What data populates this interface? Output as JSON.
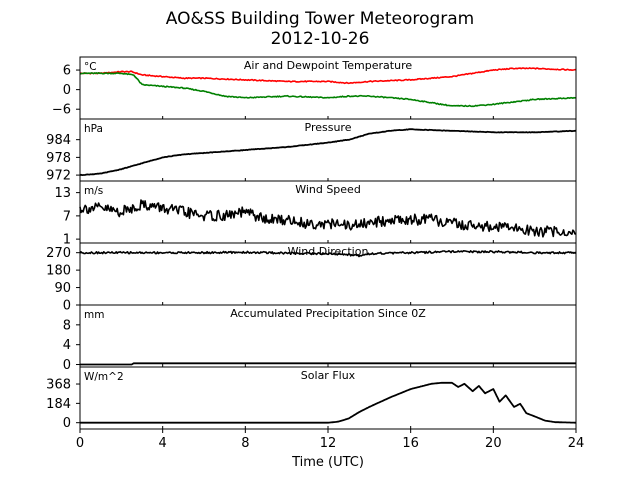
{
  "title": "AO&SS Building Tower Meteorogram",
  "subtitle": "2012-10-26",
  "chart_data": {
    "type": "line",
    "title": "AO&SS Building Tower Meteorogram",
    "subtitle": "2012-10-26",
    "xlabel": "Time (UTC)",
    "xlim": [
      0,
      24
    ],
    "xticks": [
      0,
      4,
      8,
      12,
      16,
      20,
      24
    ],
    "xtick_labels": [
      "0",
      "4",
      "8",
      "12",
      "16",
      "20",
      "24"
    ],
    "grid": false,
    "panels": [
      {
        "id": "temperature",
        "title": "Air and Dewpoint Temperature",
        "unit": "°C",
        "ylim": [
          -9,
          10
        ],
        "yticks": [
          6,
          0,
          -6
        ],
        "ytick_labels": [
          "6",
          "0",
          "−6"
        ],
        "series": [
          {
            "color": "#ff0000",
            "x": [
              0,
              1,
              2,
              2.5,
              3,
              4,
              5,
              6,
              8,
              10,
              12,
              13,
              14,
              16,
              18,
              20,
              21,
              22,
              24
            ],
            "values": [
              5,
              5,
              5.5,
              5.5,
              4.5,
              4,
              3.5,
              3.5,
              3,
              2.5,
              2.5,
              2,
              2.5,
              3,
              4,
              6,
              6.5,
              6.5,
              6
            ]
          },
          {
            "color": "#008000",
            "x": [
              0,
              1,
              2,
              2.6,
              3,
              4,
              5,
              6,
              7,
              8,
              10,
              12,
              13,
              14,
              16,
              18,
              19,
              20,
              22,
              24
            ],
            "values": [
              5,
              5,
              5,
              4.5,
              1.5,
              1,
              0.5,
              -0.5,
              -2,
              -2.5,
              -2,
              -2.5,
              -2,
              -2,
              -3,
              -5,
              -5,
              -4.5,
              -3,
              -2.5
            ]
          }
        ]
      },
      {
        "id": "pressure",
        "title": "Pressure",
        "unit": "hPa",
        "ylim": [
          970,
          991
        ],
        "yticks": [
          984,
          978,
          972
        ],
        "ytick_labels": [
          "984",
          "978",
          "972"
        ],
        "series": [
          {
            "color": "#000000",
            "x": [
              0,
              1,
              2,
              3,
              4,
              5,
              6,
              8,
              10,
              12,
              13,
              14,
              15,
              16,
              18,
              20,
              22,
              24
            ],
            "values": [
              972,
              972.5,
              974,
              976,
              978,
              979,
              979.5,
              980.5,
              981.5,
              983,
              984,
              986,
              987,
              987.5,
              987,
              986.5,
              986.5,
              987
            ]
          }
        ]
      },
      {
        "id": "wind_speed",
        "title": "Wind Speed",
        "unit": "m/s",
        "ylim": [
          0,
          16
        ],
        "yticks": [
          13,
          7,
          1
        ],
        "ytick_labels": [
          "13",
          "7",
          "1"
        ],
        "series": [
          {
            "color": "#000000",
            "x": [
              0,
              1,
              2,
              3,
              4,
              5,
              6,
              7,
              8,
              9,
              10,
              11,
              12,
              13,
              14,
              15,
              16,
              17,
              18,
              19,
              20,
              21,
              22,
              23,
              24
            ],
            "values": [
              9,
              9,
              8,
              10,
              9,
              8,
              7,
              7,
              8,
              6,
              6,
              5,
              5,
              4.5,
              5,
              6,
              6,
              6,
              5,
              4.5,
              4,
              4,
              3,
              3,
              2.5
            ]
          }
        ]
      },
      {
        "id": "wind_direction",
        "title": "Wind Direction",
        "unit": "",
        "ylim": [
          0,
          320
        ],
        "yticks": [
          270,
          180,
          90,
          0
        ],
        "ytick_labels": [
          "270",
          "180",
          "90",
          "0"
        ],
        "series": [
          {
            "color": "#000000",
            "x": [
              0,
              2,
              4,
              6,
              8,
              10,
              12,
              13,
              13.5,
              14,
              16,
              18,
              20,
              22,
              24
            ],
            "values": [
              270,
              270,
              270,
              270,
              272,
              268,
              265,
              260,
              255,
              265,
              270,
              275,
              275,
              270,
              270
            ]
          }
        ]
      },
      {
        "id": "precipitation",
        "title": "Accumulated Precipitation Since 0Z",
        "unit": "mm",
        "ylim": [
          -0.5,
          12
        ],
        "yticks": [
          8,
          4,
          0
        ],
        "ytick_labels": [
          "8",
          "4",
          "0"
        ],
        "series": [
          {
            "color": "#000000",
            "x": [
              0,
              2.5,
              2.6,
              24
            ],
            "values": [
              0,
              0,
              0.25,
              0.25
            ]
          }
        ]
      },
      {
        "id": "solar",
        "title": "Solar Flux",
        "unit": "W/m^2",
        "ylim": [
          -60,
          530
        ],
        "yticks": [
          368,
          184,
          0
        ],
        "ytick_labels": [
          "368",
          "184",
          "0"
        ],
        "series": [
          {
            "color": "#000000",
            "x": [
              0,
              12,
              12.5,
              13,
              13.5,
              14,
              15,
              16,
              17,
              17.5,
              18,
              18.3,
              18.6,
              19,
              19.3,
              19.6,
              20,
              20.3,
              20.6,
              21,
              21.3,
              21.6,
              22,
              22.5,
              23,
              24
            ],
            "values": [
              0,
              0,
              10,
              40,
              100,
              150,
              240,
              320,
              370,
              380,
              380,
              340,
              370,
              300,
              350,
              280,
              320,
              200,
              260,
              150,
              180,
              90,
              60,
              20,
              5,
              0
            ]
          }
        ]
      }
    ]
  }
}
